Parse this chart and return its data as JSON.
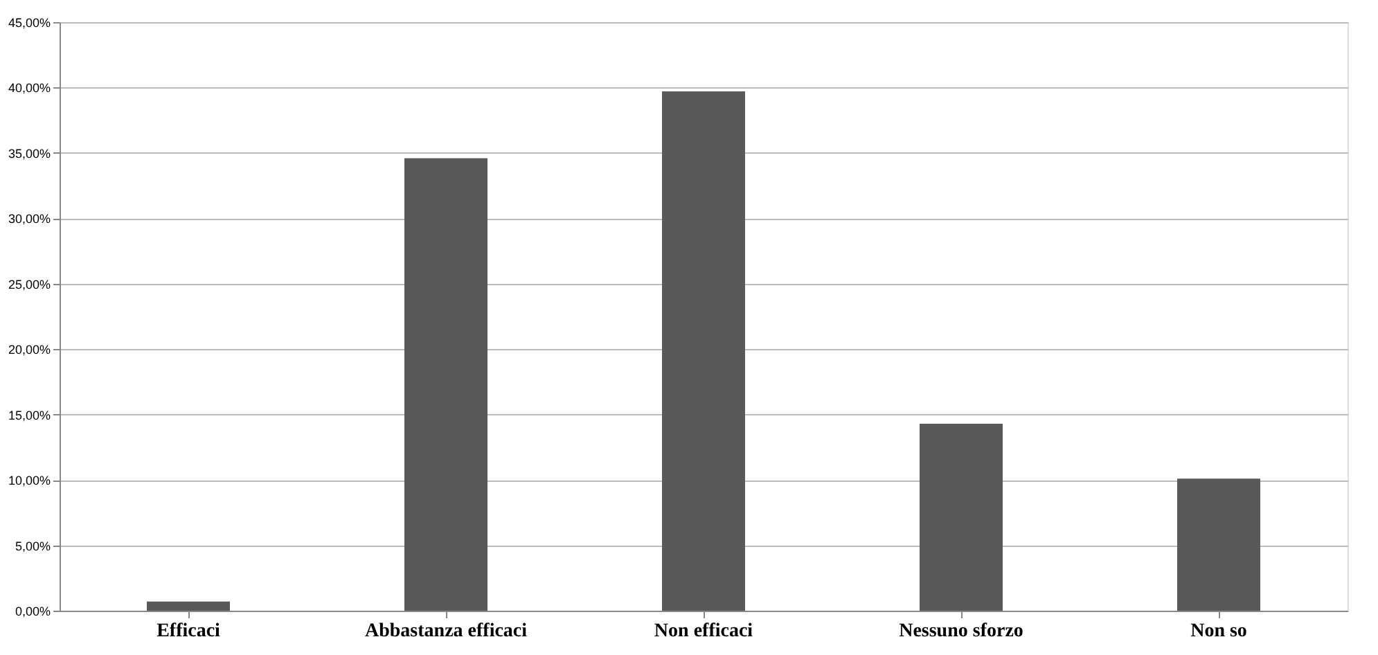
{
  "chart_data": {
    "type": "bar",
    "categories": [
      "Efficaci",
      "Abbastanza efficaci",
      "Non efficaci",
      "Nessuno sforzo",
      "Non so"
    ],
    "series": [
      {
        "color": "#595959",
        "values": [
          0.7,
          34.6,
          39.7,
          14.3,
          10.1
        ]
      }
    ],
    "ylim": [
      0,
      45
    ],
    "yticks": [
      {
        "value": 0,
        "label": "0,00%"
      },
      {
        "value": 5,
        "label": "5,00%"
      },
      {
        "value": 10,
        "label": "10,00%"
      },
      {
        "value": 15,
        "label": "15,00%"
      },
      {
        "value": 20,
        "label": "20,00%"
      },
      {
        "value": 25,
        "label": "25,00%"
      },
      {
        "value": 30,
        "label": "30,00%"
      },
      {
        "value": 35,
        "label": "35,00%"
      },
      {
        "value": 40,
        "label": "40,00%"
      },
      {
        "value": 45,
        "label": "45,00%"
      }
    ],
    "grid": "y"
  }
}
